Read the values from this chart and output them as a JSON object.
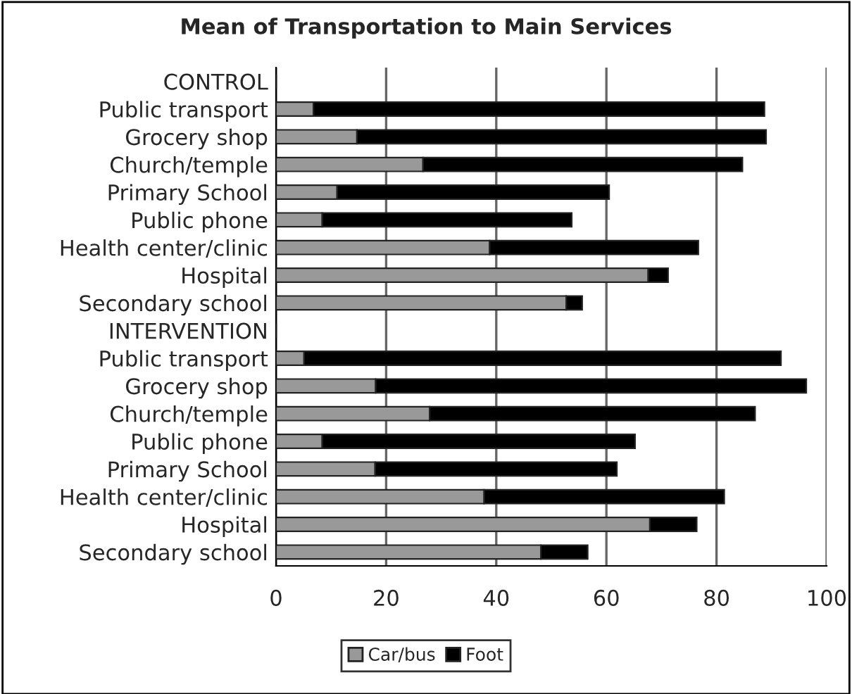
{
  "chart_data": {
    "type": "bar",
    "orientation": "horizontal",
    "stacked": true,
    "title": "Mean of Transportation to Main Services",
    "categories": [
      "CONTROL",
      "Public transport",
      "Grocery shop",
      "Church/temple",
      "Primary School",
      "Public phone",
      "Health center/clinic",
      "Hospital",
      "Secondary school",
      "INTERVENTION",
      "Public transport",
      "Grocery shop",
      "Church/temple",
      "Public phone",
      "Primary School",
      "Health center/clinic",
      "Hospital",
      "Secondary school"
    ],
    "series": [
      {
        "name": "Car/bus",
        "color": "#999999",
        "values": [
          null,
          6.8,
          14.7,
          26.7,
          11.1,
          8.4,
          38.8,
          67.6,
          52.7,
          null,
          5.1,
          18.1,
          27.9,
          8.4,
          18.0,
          37.8,
          67.9,
          48.1
        ]
      },
      {
        "name": "Foot",
        "color": "#000000",
        "values": [
          null,
          81.9,
          74.3,
          58.0,
          49.4,
          45.3,
          37.9,
          3.6,
          2.9,
          null,
          86.6,
          78.2,
          59.1,
          56.8,
          43.9,
          43.6,
          8.5,
          8.5
        ]
      }
    ],
    "xlim": [
      0,
      100
    ],
    "xticks": [
      0,
      20,
      40,
      60,
      80,
      100
    ],
    "grid": "x",
    "legend": "bottom"
  }
}
